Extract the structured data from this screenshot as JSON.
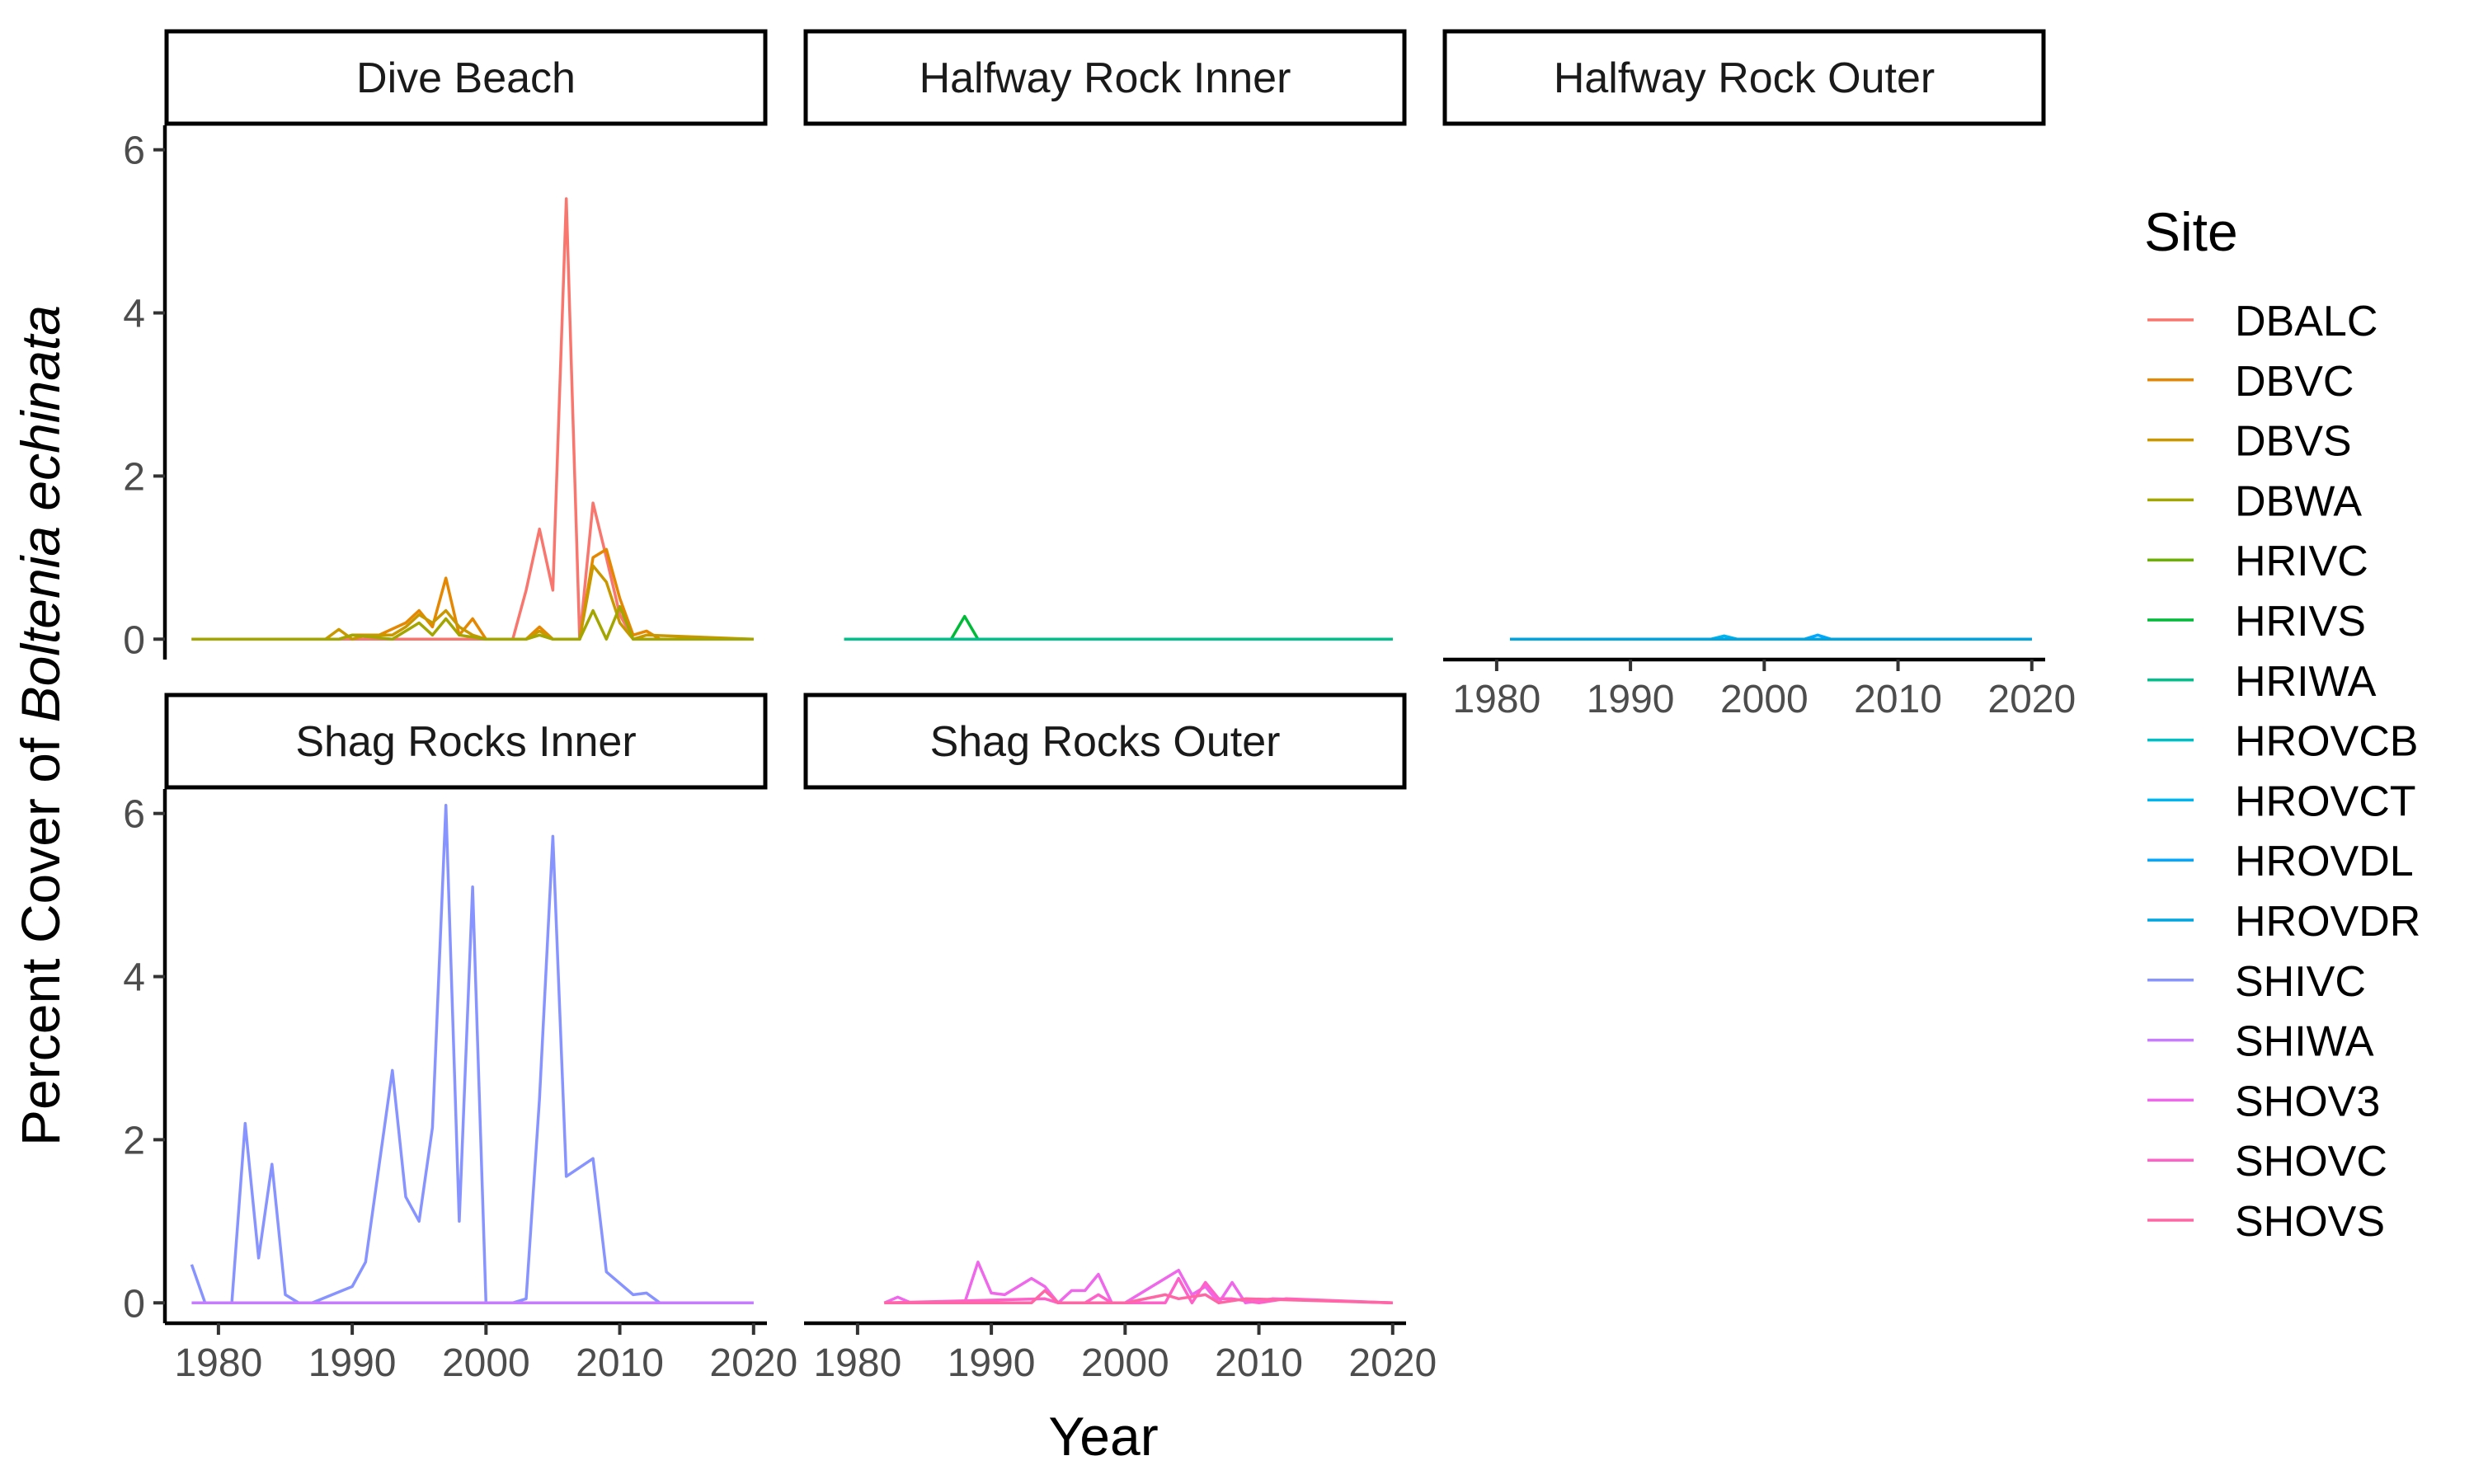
{
  "chart_data": {
    "type": "line",
    "xlabel": "Year",
    "ylabel_prefix": "Percent Cover of ",
    "ylabel_species": "Boltenia echinata",
    "xlim": [
      1976,
      2021
    ],
    "ylim": [
      -0.25,
      6.3
    ],
    "x_ticks": [
      1980,
      1990,
      2000,
      2010,
      2020
    ],
    "y_ticks": [
      0,
      2,
      4,
      6
    ],
    "legend": {
      "title": "Site",
      "position": "right",
      "entries": [
        {
          "name": "DBALC",
          "color": "#F8766D"
        },
        {
          "name": "DBVC",
          "color": "#E58700"
        },
        {
          "name": "DBVS",
          "color": "#C99800"
        },
        {
          "name": "DBWA",
          "color": "#A3A500"
        },
        {
          "name": "HRIVC",
          "color": "#6BB100"
        },
        {
          "name": "HRIVS",
          "color": "#00BA38"
        },
        {
          "name": "HRIWA",
          "color": "#00C08B"
        },
        {
          "name": "HROVCB",
          "color": "#00BFC4"
        },
        {
          "name": "HROVCT",
          "color": "#00B4F0"
        },
        {
          "name": "HROVDL",
          "color": "#00A9FF"
        },
        {
          "name": "HROVDR",
          "color": "#00A5E0"
        },
        {
          "name": "SHIVC",
          "color": "#8794FF"
        },
        {
          "name": "SHIWA",
          "color": "#C77CFF"
        },
        {
          "name": "SHOV3",
          "color": "#EF67EB"
        },
        {
          "name": "SHOVC",
          "color": "#FF61C9"
        },
        {
          "name": "SHOVS",
          "color": "#FF67A4"
        }
      ]
    },
    "panels": [
      {
        "title": "Dive Beach",
        "series": [
          {
            "name": "DBALC",
            "x": [
              1978,
              1988,
              1989,
              1990,
              1995,
              2000,
              2002,
              2003,
              2004,
              2005,
              2006,
              2007,
              2008,
              2009,
              2010,
              2011,
              2020
            ],
            "y": [
              0,
              0,
              0,
              0,
              0,
              0,
              0,
              0.6,
              1.35,
              0.6,
              5.4,
              0,
              1.67,
              1.0,
              0.3,
              0,
              0
            ]
          },
          {
            "name": "DBVC",
            "x": [
              1978,
              1989,
              1990,
              1992,
              1994,
              1995,
              1996,
              1997,
              1998,
              1999,
              2000,
              2003,
              2004,
              2005,
              2007,
              2008,
              2009,
              2010,
              2011,
              2012,
              2013,
              2020
            ],
            "y": [
              0,
              0,
              0.05,
              0.05,
              0.2,
              0.35,
              0.15,
              0.75,
              0.05,
              0.25,
              0,
              0,
              0.15,
              0,
              0,
              1.0,
              1.1,
              0.5,
              0.05,
              0.1,
              0,
              0
            ]
          },
          {
            "name": "DBVS",
            "x": [
              1978,
              1988,
              1989,
              1990,
              1991,
              1993,
              1994,
              1995,
              1996,
              1997,
              1998,
              1999,
              2000,
              2003,
              2004,
              2005,
              2007,
              2008,
              2009,
              2010,
              2011,
              2012,
              2020
            ],
            "y": [
              0,
              0,
              0.12,
              0,
              0.05,
              0.05,
              0.15,
              0.3,
              0.2,
              0.35,
              0.15,
              0.05,
              0,
              0,
              0.1,
              0,
              0,
              0.9,
              0.7,
              0.2,
              0,
              0.05,
              0
            ]
          },
          {
            "name": "DBWA",
            "x": [
              1978,
              1989,
              1990,
              1993,
              1994,
              1995,
              1996,
              1997,
              1998,
              2000,
              2003,
              2004,
              2005,
              2007,
              2008,
              2009,
              2010,
              2011,
              2020
            ],
            "y": [
              0,
              0,
              0.05,
              0,
              0.1,
              0.2,
              0.05,
              0.25,
              0.05,
              0,
              0,
              0.05,
              0,
              0,
              0.35,
              0,
              0.4,
              0,
              0
            ]
          }
        ]
      },
      {
        "title": "Halfway Rock Inner",
        "series": [
          {
            "name": "HRIVC",
            "x": [
              1979,
              2020
            ],
            "y": [
              0,
              0
            ]
          },
          {
            "name": "HRIVS",
            "x": [
              1979,
              1987,
              1988,
              1989,
              2020
            ],
            "y": [
              0,
              0,
              0.28,
              0,
              0
            ]
          },
          {
            "name": "HRIWA",
            "x": [
              1979,
              2020
            ],
            "y": [
              0,
              0
            ]
          }
        ]
      },
      {
        "title": "Halfway Rock Outer",
        "series": [
          {
            "name": "HROVCB",
            "x": [
              1981,
              2020
            ],
            "y": [
              0,
              0
            ]
          },
          {
            "name": "HROVCT",
            "x": [
              1981,
              1996,
              1997,
              1998,
              2020
            ],
            "y": [
              0,
              0,
              0.04,
              0,
              0
            ]
          },
          {
            "name": "HROVDL",
            "x": [
              1981,
              2003,
              2004,
              2005,
              2020
            ],
            "y": [
              0,
              0,
              0.05,
              0,
              0
            ]
          },
          {
            "name": "HROVDR",
            "x": [
              1981,
              2020
            ],
            "y": [
              0,
              0
            ]
          }
        ]
      },
      {
        "title": "Shag Rocks Inner",
        "series": [
          {
            "name": "SHIVC",
            "x": [
              1978,
              1979,
              1981,
              1982,
              1983,
              1984,
              1985,
              1986,
              1987,
              1990,
              1991,
              1993,
              1994,
              1995,
              1996,
              1997,
              1998,
              1999,
              2000,
              2002,
              2003,
              2004,
              2005,
              2006,
              2008,
              2009,
              2011,
              2012,
              2013,
              2020
            ],
            "y": [
              0.47,
              0,
              0,
              2.2,
              0.55,
              1.7,
              0.1,
              0,
              0,
              0.2,
              0.5,
              2.85,
              1.3,
              1.0,
              2.15,
              6.1,
              1.0,
              5.1,
              0,
              0,
              0.05,
              2.5,
              5.72,
              1.55,
              1.77,
              0.38,
              0.1,
              0.12,
              0,
              0
            ]
          },
          {
            "name": "SHIWA",
            "x": [
              1978,
              2020
            ],
            "y": [
              0,
              0
            ]
          }
        ]
      },
      {
        "title": "Shag Rocks Outer",
        "series": [
          {
            "name": "SHOV3",
            "x": [
              1982,
              1983,
              1984,
              1988,
              1989,
              1990,
              1991,
              1993,
              1994,
              1995,
              1996,
              1997,
              1998,
              1999,
              2000,
              2004,
              2005,
              2006,
              2007,
              2008,
              2009,
              2011,
              2020
            ],
            "y": [
              0,
              0.07,
              0,
              0,
              0.5,
              0.12,
              0.1,
              0.3,
              0.2,
              0,
              0.15,
              0.15,
              0.35,
              0,
              0,
              0.4,
              0.1,
              0.2,
              0,
              0.25,
              0,
              0.05,
              0
            ]
          },
          {
            "name": "SHOVC",
            "x": [
              1982,
              1994,
              1995,
              1997,
              1998,
              1999,
              2003,
              2004,
              2005,
              2006,
              2007,
              2008,
              2010,
              2012,
              2020
            ],
            "y": [
              0,
              0.05,
              0,
              0,
              0.1,
              0,
              0,
              0.3,
              0,
              0.25,
              0.05,
              0.05,
              0,
              0.05,
              0
            ]
          },
          {
            "name": "SHOVS",
            "x": [
              1982,
              1993,
              1994,
              1995,
              2000,
              2003,
              2004,
              2006,
              2007,
              2009,
              2020
            ],
            "y": [
              0,
              0,
              0.15,
              0,
              0,
              0.1,
              0.05,
              0.1,
              0,
              0.05,
              0
            ]
          }
        ]
      }
    ]
  }
}
